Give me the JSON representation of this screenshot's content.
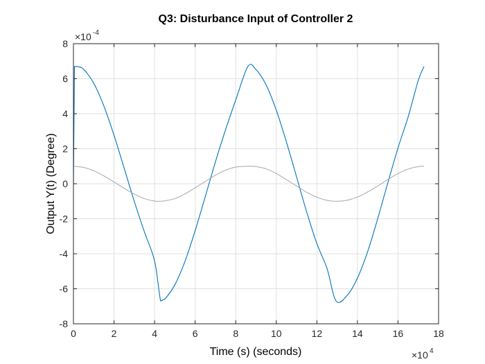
{
  "chart_data": {
    "type": "line",
    "title": "Q3: Disturbance Input of Controller 2",
    "xlabel": "Time (s) (seconds)",
    "ylabel": "Output Y(t) (Degree)",
    "xlim": [
      0,
      180000
    ],
    "ylim": [
      -0.0008,
      0.0008
    ],
    "x_ticks": [
      0,
      20000,
      40000,
      60000,
      80000,
      100000,
      120000,
      140000,
      160000,
      180000
    ],
    "x_tick_labels": [
      "0",
      "2",
      "4",
      "6",
      "8",
      "10",
      "12",
      "14",
      "16",
      "18"
    ],
    "y_ticks": [
      -0.0008,
      -0.0006,
      -0.0004,
      -0.0002,
      0,
      0.0002,
      0.0004,
      0.0006,
      0.0008
    ],
    "y_tick_labels": [
      "-8",
      "-6",
      "-4",
      "-2",
      "0",
      "2",
      "4",
      "6",
      "8"
    ],
    "x_exponent": {
      "base": "×10",
      "power": "4"
    },
    "y_exponent": {
      "base": "×10",
      "power": "-4"
    },
    "grid": true,
    "series": [
      {
        "color": "#0072BD",
        "x": [
          0,
          500,
          2000,
          5000,
          10000,
          15000,
          20000,
          25000,
          30000,
          35000,
          40000,
          43000,
          45000,
          50000,
          55000,
          60000,
          65000,
          70000,
          75000,
          80000,
          86000,
          90000,
          95000,
          100000,
          105000,
          110000,
          115000,
          120000,
          125000,
          129500,
          135000,
          140000,
          145000,
          150000,
          155000,
          160000,
          165000,
          170000,
          172800
        ],
        "y": [
          0,
          0.00067,
          0.000669,
          0.000654,
          0.000574,
          0.000444,
          0.000277,
          8.9e-05,
          -0.000101,
          -0.000276,
          -0.000441,
          -0.00067,
          -0.00066,
          -0.000577,
          -0.000443,
          -0.000268,
          -7.3e-05,
          0.000125,
          0.000309,
          0.000478,
          0.00067,
          0.000652,
          0.000564,
          0.00042,
          0.000238,
          3.9e-05,
          -0.000162,
          -0.000342,
          -0.000484,
          -0.00067,
          -0.000637,
          -0.000539,
          -0.000389,
          -0.000199,
          6e-06,
          0.000205,
          0.000382,
          0.000591,
          0.00067
        ]
      },
      {
        "color": "#A6A6A6",
        "x": [
          0,
          5000,
          10000,
          15000,
          20000,
          25000,
          30000,
          35000,
          40000,
          43200,
          45000,
          50000,
          55000,
          60000,
          65000,
          70000,
          75000,
          80000,
          86400,
          90000,
          95000,
          100000,
          105000,
          110000,
          115000,
          120000,
          125000,
          129600,
          135000,
          140000,
          145000,
          150000,
          155000,
          160000,
          165000,
          170000,
          172800
        ],
        "y": [
          0.0001,
          9.3e-05,
          7.4e-05,
          4.5e-05,
          1e-05,
          -2.6e-05,
          -5.9e-05,
          -8.5e-05,
          -9.9e-05,
          -0.0001,
          -9.8e-05,
          -8.5e-05,
          -5.8e-05,
          -2.3e-05,
          1.3e-05,
          4.9e-05,
          7.7e-05,
          9.5e-05,
          0.0001,
          9.8e-05,
          8.5e-05,
          5.8e-05,
          2.3e-05,
          -1.3e-05,
          -4.9e-05,
          -7.7e-05,
          -9.5e-05,
          -0.0001,
          -9.4e-05,
          -7.6e-05,
          -4.7e-05,
          -1.3e-05,
          2.4e-05,
          5.8e-05,
          8.4e-05,
          9.8e-05,
          0.0001
        ]
      }
    ]
  }
}
